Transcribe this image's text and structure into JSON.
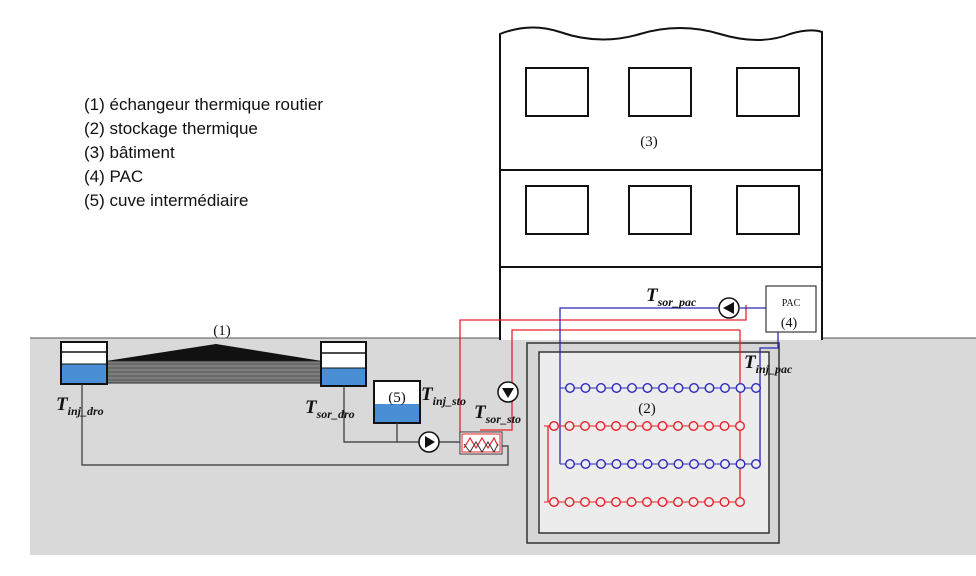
{
  "legend": [
    "(1) échangeur thermique routier",
    "(2) stockage thermique",
    "(3) bâtiment",
    "(4) PAC",
    "(5) cuve intermédiaire"
  ],
  "labels": {
    "road_exchanger": "(1)",
    "storage": "(2)",
    "building": "(3)",
    "pac_number": "(4)",
    "pac_box": "PAC",
    "tank": "(5)"
  },
  "temperatures": {
    "inj_dro": {
      "base": "T",
      "sub": "inj_dro"
    },
    "sor_dro": {
      "base": "T",
      "sub": "sor_dro"
    },
    "inj_sto": {
      "base": "T",
      "sub": "inj_sto"
    },
    "sor_sto": {
      "base": "T",
      "sub": "sor_sto"
    },
    "sor_pac": {
      "base": "T",
      "sub": "sor_pac"
    },
    "inj_pac": {
      "base": "T",
      "sub": "inj_pac"
    }
  },
  "colors": {
    "ground": "#d9d9d9",
    "hot_pipe": "#e8202a",
    "cold_pipe": "#2a2ab8",
    "water": "#4a8fd6",
    "outline": "#111111"
  }
}
